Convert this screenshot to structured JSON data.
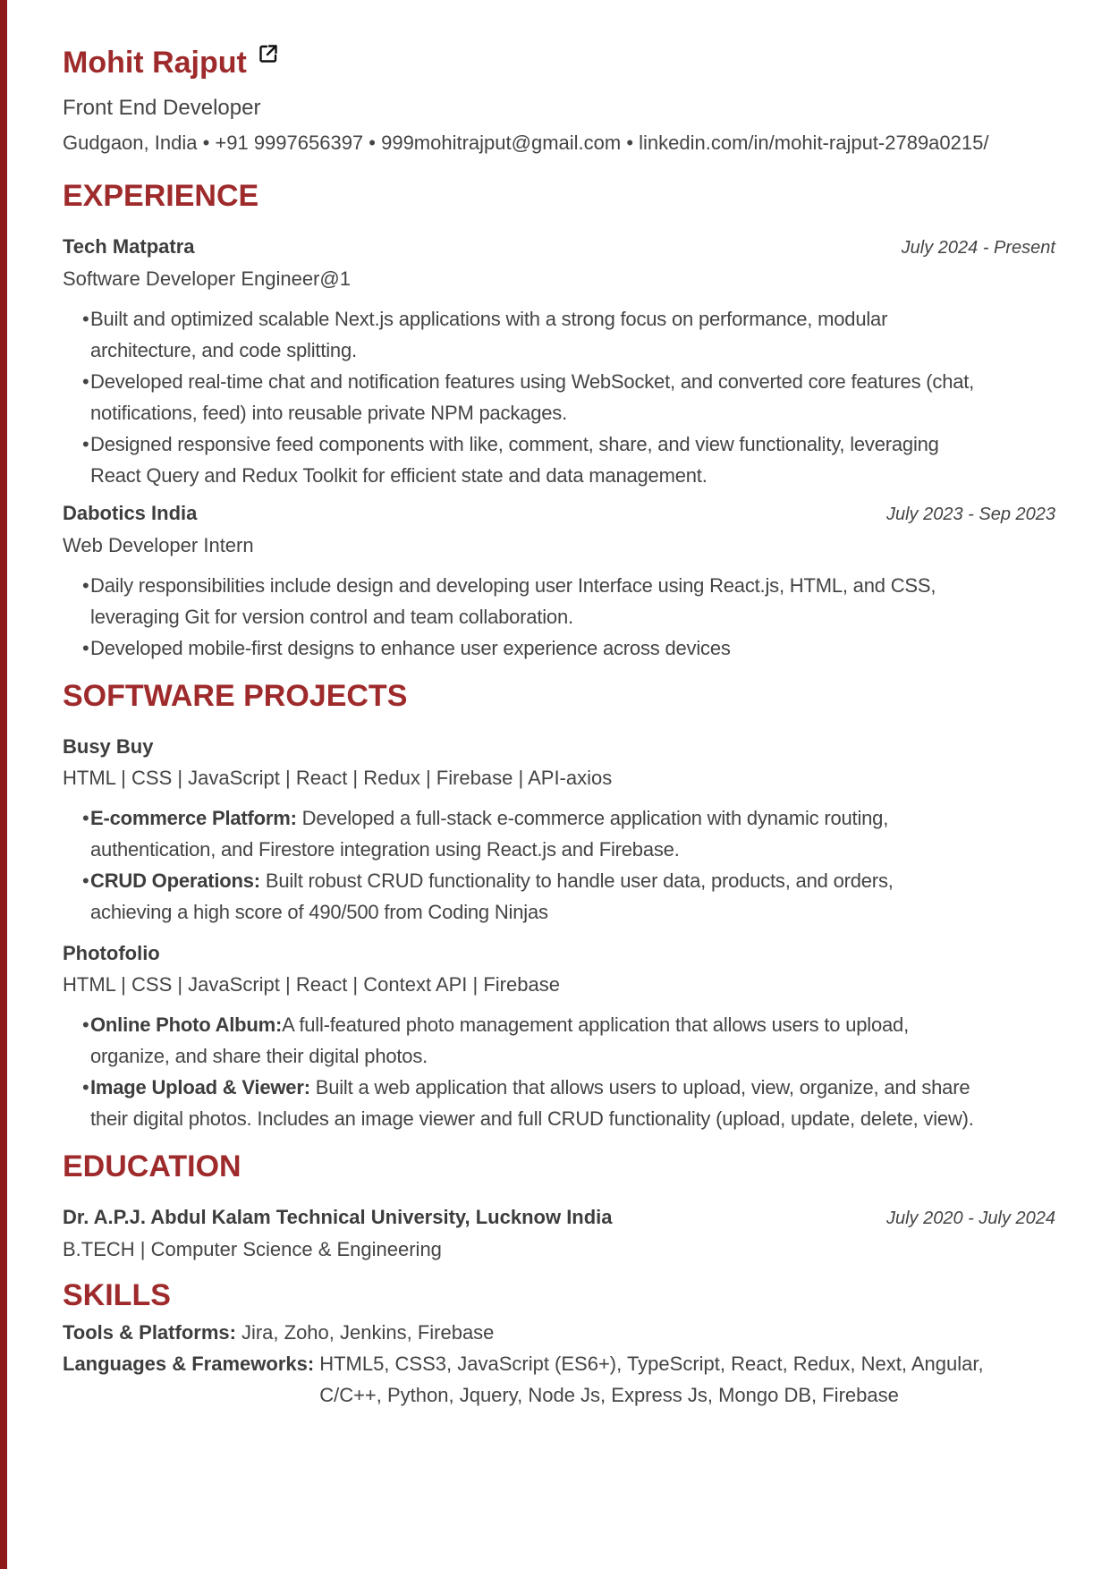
{
  "header": {
    "name": "Mohit Rajput",
    "link_icon": "external-link-icon",
    "title": "Front End Developer",
    "contact": "Gudgaon, India • +91 9997656397 • 999mohitrajput@gmail.com • linkedin.com/in/mohit-rajput-2789a0215/"
  },
  "colors": {
    "accent": "#9e2a2b",
    "leftbar": "#8f1a1a",
    "text": "#444444"
  },
  "experience": {
    "heading": "EXPERIENCE",
    "jobs": [
      {
        "company": "Tech Matpatra",
        "dates": "July 2024 - Present",
        "role": "Software Developer Engineer@1",
        "bullets": [
          "Built and optimized scalable Next.js applications with a strong focus on performance, modular architecture, and code splitting.",
          "Developed real-time chat and notification features using WebSocket, and converted core features (chat, notifications, feed) into reusable private NPM packages.",
          "Designed responsive feed components with like, comment, share, and view functionality, leveraging React Query and Redux Toolkit for efficient state and data management."
        ]
      },
      {
        "company": "Dabotics India",
        "dates": "July 2023 - Sep 2023",
        "role": "Web Developer Intern",
        "bullets": [
          "Daily responsibilities include design and developing user Interface using React.js, HTML, and CSS, leveraging Git for version control and team collaboration.",
          "Developed mobile-first designs to enhance user experience across devices"
        ]
      }
    ]
  },
  "projects": {
    "heading": "SOFTWARE PROJECTS",
    "items": [
      {
        "name": "Busy Buy",
        "stack": "HTML | CSS | JavaScript | React | Redux | Firebase | API-axios",
        "bullets": [
          {
            "label": "E-commerce Platform:",
            "text": " Developed a full-stack e-commerce application with dynamic routing, authentication, and Firestore integration using React.js and Firebase."
          },
          {
            "label": "CRUD Operations:",
            "text": " Built robust CRUD functionality to handle user data, products, and orders, achieving a high score of 490/500 from Coding Ninjas"
          }
        ]
      },
      {
        "name": "Photofolio",
        "stack": "HTML | CSS | JavaScript | React | Context API | Firebase",
        "bullets": [
          {
            "label": "Online Photo Album:",
            "text": "A full-featured photo management application that allows users to upload, organize, and share their digital photos."
          },
          {
            "label": "Image Upload & Viewer:",
            "text": " Built a web application that allows users to upload, view, organize, and share their digital photos. Includes an image viewer and full CRUD functionality (upload, update, delete, view)."
          }
        ]
      }
    ]
  },
  "education": {
    "heading": "EDUCATION",
    "school": "Dr. A.P.J. Abdul Kalam Technical University, Lucknow India",
    "dates": "July 2020 - July 2024",
    "degree": "B.TECH | Computer Science & Engineering"
  },
  "skills": {
    "heading": "SKILLS",
    "tools_label": "Tools & Platforms:",
    "tools": "Jira, Zoho, Jenkins, Firebase",
    "lang_label": "Languages & Frameworks:",
    "languages": "HTML5, CSS3, JavaScript (ES6+), TypeScript, React, Redux, Next, Angular, C/C++, Python, Jquery, Node Js, Express Js, Mongo DB, Firebase"
  }
}
